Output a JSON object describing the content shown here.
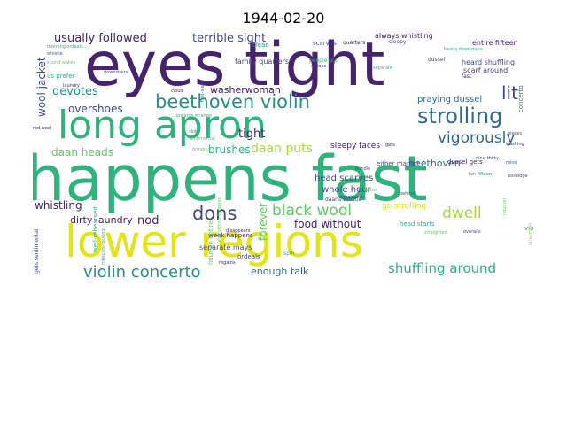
{
  "title": "1944-02-20",
  "words": {
    "happens_fast": "happens fast",
    "lower_regions": "lower regions",
    "eyes_tight": "eyes tight",
    "long_apron": "long apron",
    "beethoven_violin": "beethoven violin",
    "strolling": "strolling",
    "vigorously": "vigorously",
    "violin_concerto": "violin concerto",
    "dons": "dons",
    "black_wool": "black wool",
    "dwell": "dwell",
    "shuffling_around": "shuffling around",
    "usually_followed": "usually followed",
    "terrible_sight": "terrible sight",
    "devotes": "devotes",
    "overshoes": "overshoes",
    "daan_heads": "daan heads",
    "daan_puts": "daan puts",
    "tight": "tight",
    "washerwoman": "washerwoman",
    "lit": "lit",
    "brushes": "brushes",
    "nod": "nod",
    "food_without": "food without",
    "forever": "forever",
    "whistling": "whistling",
    "dirty_laundry": "dirty laundry",
    "enough_talk": "enough talk",
    "head_scarves": "head scarves",
    "whole_hour": "whole hour",
    "beethoven": "beethoven",
    "go_strolling": "go strolling",
    "wool_jacket": "wool jacket",
    "praying_dussel": "praying dussel",
    "sleepy_faces": "sleepy faces",
    "family_quarters": "family quarters",
    "separate_mays": "separate mays",
    "week_happens": "week happens",
    "ordeals": "ordeals",
    "heard_shuffling": "heard shuffling",
    "scarf_around": "scarf around",
    "entire_fifteen": "entire fifteen",
    "always_whistling": "always whistling",
    "either_margot": "either margot",
    "dussel_gets": "dussel gets",
    "head_starts": "head starts",
    "hour_on_entire": "hour-on entire",
    "well_rehearsed": "well-rehearsed",
    "gets_sentimental": "gets sentimental",
    "muscles_rocking": "muscles-rocking",
    "everything_happens": "everything happens",
    "disappears": "disappears",
    "regains": "regains",
    "spin": "spin",
    "violin": "violin",
    "straighten": "straighten",
    "concerto": "concerto",
    "scarves": "scarves",
    "quarters": "quarters",
    "clean": "clean",
    "sleepy": "sleepy",
    "people_put": "people put",
    "fast": "fast",
    "dussel": "dussel",
    "morning_ordeals": "morning ordeals",
    "whistle": "whistle",
    "sound_wakes": "sound wakes",
    "us_prefer": "us prefer",
    "red_wool": "red wool",
    "laundry": "laundry",
    "first_sleep": "first-sleep",
    "heads_downstairs": "heads downstairs",
    "downstairs": "downstairs",
    "scoops": "scoops",
    "cloud": "cloud",
    "sentimental": "sentimental",
    "bringing": "bringing",
    "upwards_strange": "upwards strange",
    "slot": "slot",
    "bundle": "bundle",
    "enveloped": "enveloped",
    "daans_whistle": "daans whistle",
    "sussel": "sussel",
    "behind": "behind",
    "separate": "separate",
    "overalls": "overalls",
    "ten_fifteen": "ten-fifteen",
    "pieces": "pieces",
    "noseidge": "noseidge",
    "washing": "washing",
    "nine_thirty": "nine-thirty",
    "hour_on": "hour-on",
    "mine": "mine",
    "gets": "gets"
  }
}
